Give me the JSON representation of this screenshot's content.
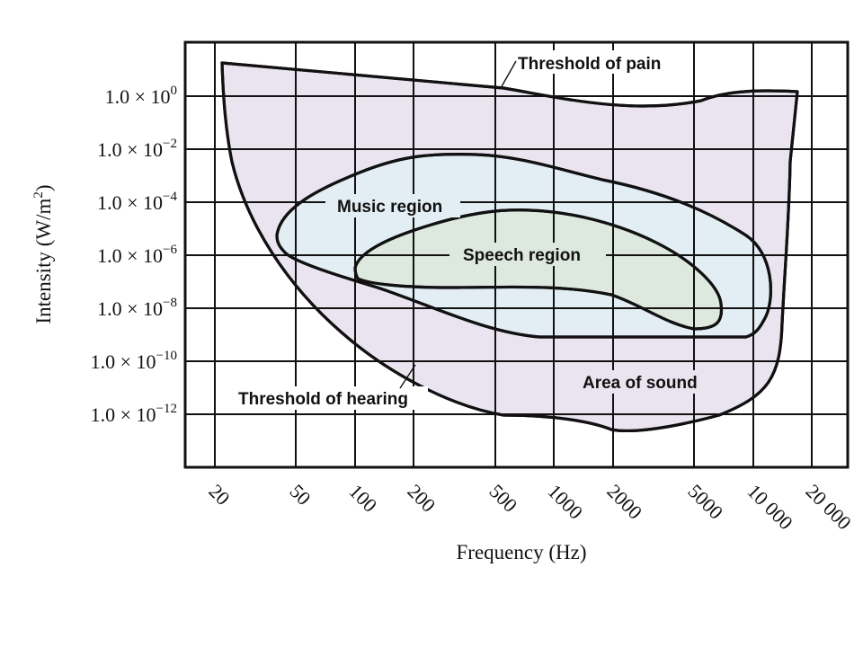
{
  "chart_data": {
    "type": "area",
    "x_axis": {
      "label": "Frequency (Hz)",
      "scale": "log",
      "ticks": [
        "20",
        "50",
        "100",
        "200",
        "500",
        "1000",
        "2000",
        "5000",
        "10 000",
        "20 000"
      ]
    },
    "y_axis": {
      "label_main": "Intensity (W/m",
      "label_sup": "2",
      "label_close": ")",
      "scale": "log",
      "ticks": [
        {
          "mantissa": "1.0 × 10",
          "exp": "0"
        },
        {
          "mantissa": "1.0 × 10",
          "exp": "−2"
        },
        {
          "mantissa": "1.0 × 10",
          "exp": "−4"
        },
        {
          "mantissa": "1.0 × 10",
          "exp": "−6"
        },
        {
          "mantissa": "1.0 × 10",
          "exp": "−8"
        },
        {
          "mantissa": "1.0 × 10",
          "exp": "−10"
        },
        {
          "mantissa": "1.0 × 10",
          "exp": "−12"
        }
      ]
    },
    "grid": true,
    "regions": [
      {
        "name": "Area of sound",
        "color": "#e9e4ef"
      },
      {
        "name": "Music region",
        "color": "#e2edf4"
      },
      {
        "name": "Speech region",
        "color": "#dde8de"
      }
    ],
    "annotations": [
      {
        "text": "Threshold of pain"
      },
      {
        "text": "Threshold of hearing"
      }
    ]
  },
  "labels": {
    "threshold_pain": "Threshold of pain",
    "threshold_hearing": "Threshold of hearing",
    "music_region": "Music region",
    "speech_region": "Speech region",
    "area_of_sound": "Area of sound"
  }
}
